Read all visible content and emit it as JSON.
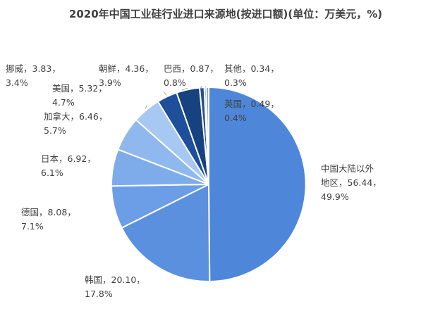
{
  "chart_data": {
    "type": "pie",
    "title": "2020年中国工业硅行业进口来源地(按进口额)(单位：万美元，%)",
    "slices": [
      {
        "name": "中国大陆以外地区",
        "value": 56.44,
        "percent": 49.9,
        "color": "#4e86d9",
        "label_lines": [
          "中国大陆以外",
          "地区，56.44，",
          "49.9%"
        ]
      },
      {
        "name": "韩国",
        "value": 20.1,
        "percent": 17.8,
        "color": "#5b90df",
        "label_lines": [
          "韩国，20.10，",
          "17.8%"
        ]
      },
      {
        "name": "德国",
        "value": 8.08,
        "percent": 7.1,
        "color": "#6b9ee6",
        "label_lines": [
          "德国，8.08，",
          "7.1%"
        ]
      },
      {
        "name": "日本",
        "value": 6.92,
        "percent": 6.1,
        "color": "#7eaceb",
        "label_lines": [
          "日本，6.92，",
          "6.1%"
        ]
      },
      {
        "name": "加拿大",
        "value": 6.46,
        "percent": 5.7,
        "color": "#8fb9ee",
        "label_lines": [
          "加拿大，6.46，",
          "5.7%"
        ]
      },
      {
        "name": "美国",
        "value": 5.32,
        "percent": 4.7,
        "color": "#a6c8f2",
        "label_lines": [
          "美国，5.32，",
          "4.7%"
        ]
      },
      {
        "name": "挪威",
        "value": 3.83,
        "percent": 3.4,
        "color": "#1e4f9a",
        "label_lines": [
          "挪威，3.83，",
          "3.4%"
        ]
      },
      {
        "name": "朝鲜",
        "value": 4.36,
        "percent": 3.9,
        "color": "#16427f",
        "label_lines": [
          "朝鲜，4.36，",
          "3.9%"
        ]
      },
      {
        "name": "巴西",
        "value": 0.87,
        "percent": 0.8,
        "color": "#264f8c",
        "label_lines": [
          "巴西，0.87，",
          "0.8%"
        ]
      },
      {
        "name": "其他",
        "value": 0.34,
        "percent": 0.3,
        "color": "#3a6cb3",
        "label_lines": [
          "其他，0.34，",
          "0.3%"
        ]
      },
      {
        "name": "英国",
        "value": 0.49,
        "percent": 0.4,
        "color": "#7aa6e3",
        "label_lines": [
          "英国，0.49，",
          "0.4%"
        ]
      }
    ]
  }
}
